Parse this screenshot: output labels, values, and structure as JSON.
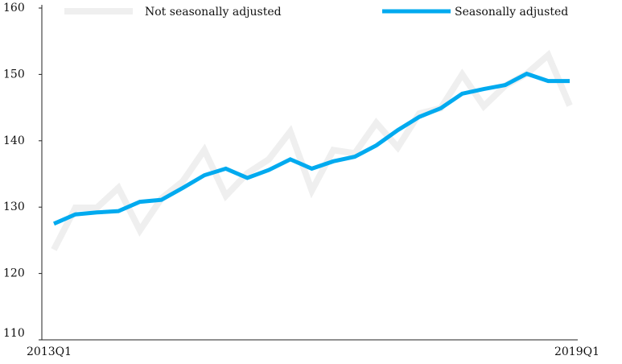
{
  "chart_data": {
    "type": "line",
    "categories": [
      "2013Q1",
      null,
      null,
      null,
      null,
      null,
      null,
      null,
      null,
      null,
      null,
      null,
      null,
      null,
      null,
      null,
      null,
      null,
      null,
      null,
      null,
      null,
      null,
      null,
      "2019Q1"
    ],
    "series": [
      {
        "name": "Not seasonally adjusted",
        "color": "#efefef",
        "values": [
          123.6,
          129.9,
          129.9,
          132.9,
          126.5,
          131.3,
          133.9,
          138.6,
          131.7,
          135.1,
          137.2,
          141.4,
          132.5,
          138.6,
          138.1,
          142.7,
          139.0,
          144.1,
          144.9,
          150.0,
          145.2,
          148.3,
          150.1,
          152.9,
          145.3
        ]
      },
      {
        "name": "Seasonally adjusted",
        "color": "#00aaef",
        "values": [
          127.5,
          128.9,
          129.2,
          129.4,
          130.8,
          131.1,
          132.9,
          134.8,
          135.8,
          134.4,
          135.6,
          137.2,
          135.8,
          136.9,
          137.6,
          139.3,
          141.6,
          143.6,
          144.9,
          147.1,
          147.8,
          148.4,
          150.1,
          149.0,
          149.0
        ]
      }
    ],
    "ylim": [
      110,
      160
    ],
    "yticks": [
      110,
      120,
      130,
      140,
      150,
      160
    ]
  }
}
